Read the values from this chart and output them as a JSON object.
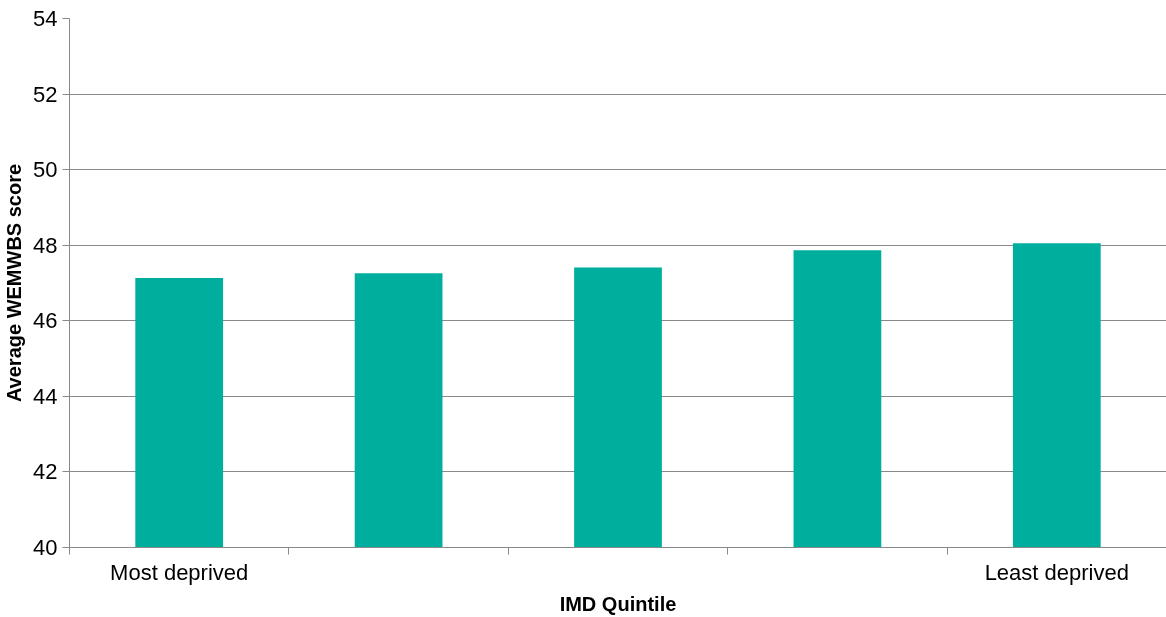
{
  "chart_data": {
    "type": "bar",
    "xlabel": "IMD Quintile",
    "ylabel": "Average WEMWBS score",
    "categories": [
      "Most deprived",
      null,
      null,
      null,
      "Least deprived"
    ],
    "values": [
      47.13,
      47.26,
      47.41,
      47.87,
      48.05
    ],
    "color": "#00ae9e",
    "ylim": [
      40,
      54
    ],
    "yticks": [
      40,
      42,
      44,
      46,
      48,
      50,
      52,
      54
    ],
    "grid": "y"
  }
}
